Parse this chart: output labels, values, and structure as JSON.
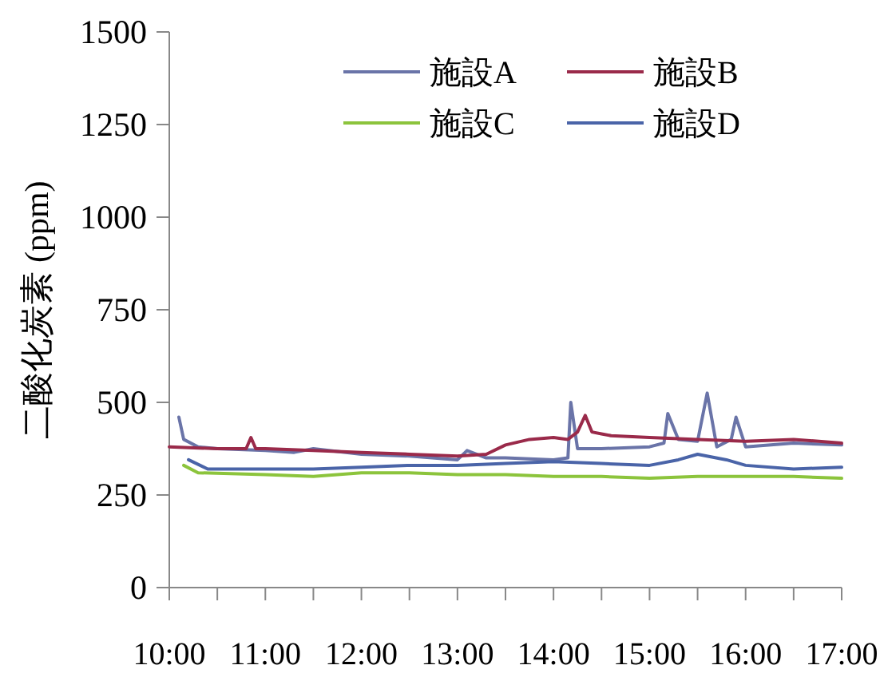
{
  "chart_data": {
    "type": "line",
    "ylabel": "二酸化炭素 (ppm)",
    "xlim": [
      10,
      17
    ],
    "ylim": [
      0,
      1500
    ],
    "yticks": [
      0,
      250,
      500,
      750,
      1000,
      1250,
      1500
    ],
    "xticks": [
      {
        "value": 10,
        "label": "10:00"
      },
      {
        "value": 10.5,
        "label": null
      },
      {
        "value": 11,
        "label": "11:00"
      },
      {
        "value": 11.5,
        "label": null
      },
      {
        "value": 12,
        "label": "12:00"
      },
      {
        "value": 12.5,
        "label": null
      },
      {
        "value": 13,
        "label": "13:00"
      },
      {
        "value": 13.5,
        "label": null
      },
      {
        "value": 14,
        "label": "14:00"
      },
      {
        "value": 14.5,
        "label": null
      },
      {
        "value": 15,
        "label": "15:00"
      },
      {
        "value": 15.5,
        "label": null
      },
      {
        "value": 16,
        "label": "16:00"
      },
      {
        "value": 16.5,
        "label": null
      },
      {
        "value": 17,
        "label": "17:00"
      }
    ],
    "grid": false,
    "legend": "top",
    "marker": "none",
    "line_style": "solid",
    "series": [
      {
        "name": "施設A",
        "color": "#6a74a8",
        "x": [
          10.1,
          10.15,
          10.3,
          10.5,
          11,
          11.3,
          11.5,
          12,
          12.5,
          13,
          13.1,
          13.3,
          13.5,
          14,
          14.15,
          14.18,
          14.25,
          14.5,
          15,
          15.15,
          15.19,
          15.3,
          15.5,
          15.6,
          15.7,
          15.85,
          15.9,
          16,
          16.5,
          17
        ],
        "values": [
          460,
          400,
          380,
          375,
          370,
          365,
          375,
          360,
          355,
          345,
          370,
          350,
          350,
          345,
          350,
          500,
          375,
          375,
          380,
          390,
          470,
          400,
          395,
          525,
          380,
          400,
          460,
          380,
          390,
          385
        ]
      },
      {
        "name": "施設B",
        "color": "#9a2a4a",
        "x": [
          10,
          10.5,
          10.8,
          10.85,
          10.9,
          11,
          11.5,
          12,
          12.5,
          13,
          13.3,
          13.5,
          13.75,
          14,
          14.15,
          14.25,
          14.33,
          14.4,
          14.5,
          14.6,
          15,
          15.5,
          16,
          16.5,
          17
        ],
        "values": [
          380,
          375,
          375,
          405,
          375,
          375,
          370,
          365,
          360,
          355,
          360,
          385,
          400,
          405,
          400,
          420,
          465,
          420,
          415,
          410,
          405,
          400,
          395,
          400,
          390
        ]
      },
      {
        "name": "施設C",
        "color": "#8cc43c",
        "x": [
          10.15,
          10.3,
          11,
          11.5,
          12,
          12.5,
          13,
          13.5,
          14,
          14.5,
          15,
          15.5,
          16,
          16.5,
          17
        ],
        "values": [
          330,
          310,
          305,
          300,
          310,
          310,
          305,
          305,
          300,
          300,
          295,
          300,
          300,
          300,
          295
        ]
      },
      {
        "name": "施設D",
        "color": "#4a64a8",
        "x": [
          10.2,
          10.4,
          11,
          11.5,
          12,
          12.5,
          13,
          13.5,
          14,
          14.5,
          15,
          15.3,
          15.5,
          15.8,
          16,
          16.5,
          17
        ],
        "values": [
          345,
          320,
          320,
          320,
          325,
          330,
          330,
          335,
          340,
          335,
          330,
          345,
          360,
          345,
          330,
          320,
          325
        ]
      }
    ]
  }
}
